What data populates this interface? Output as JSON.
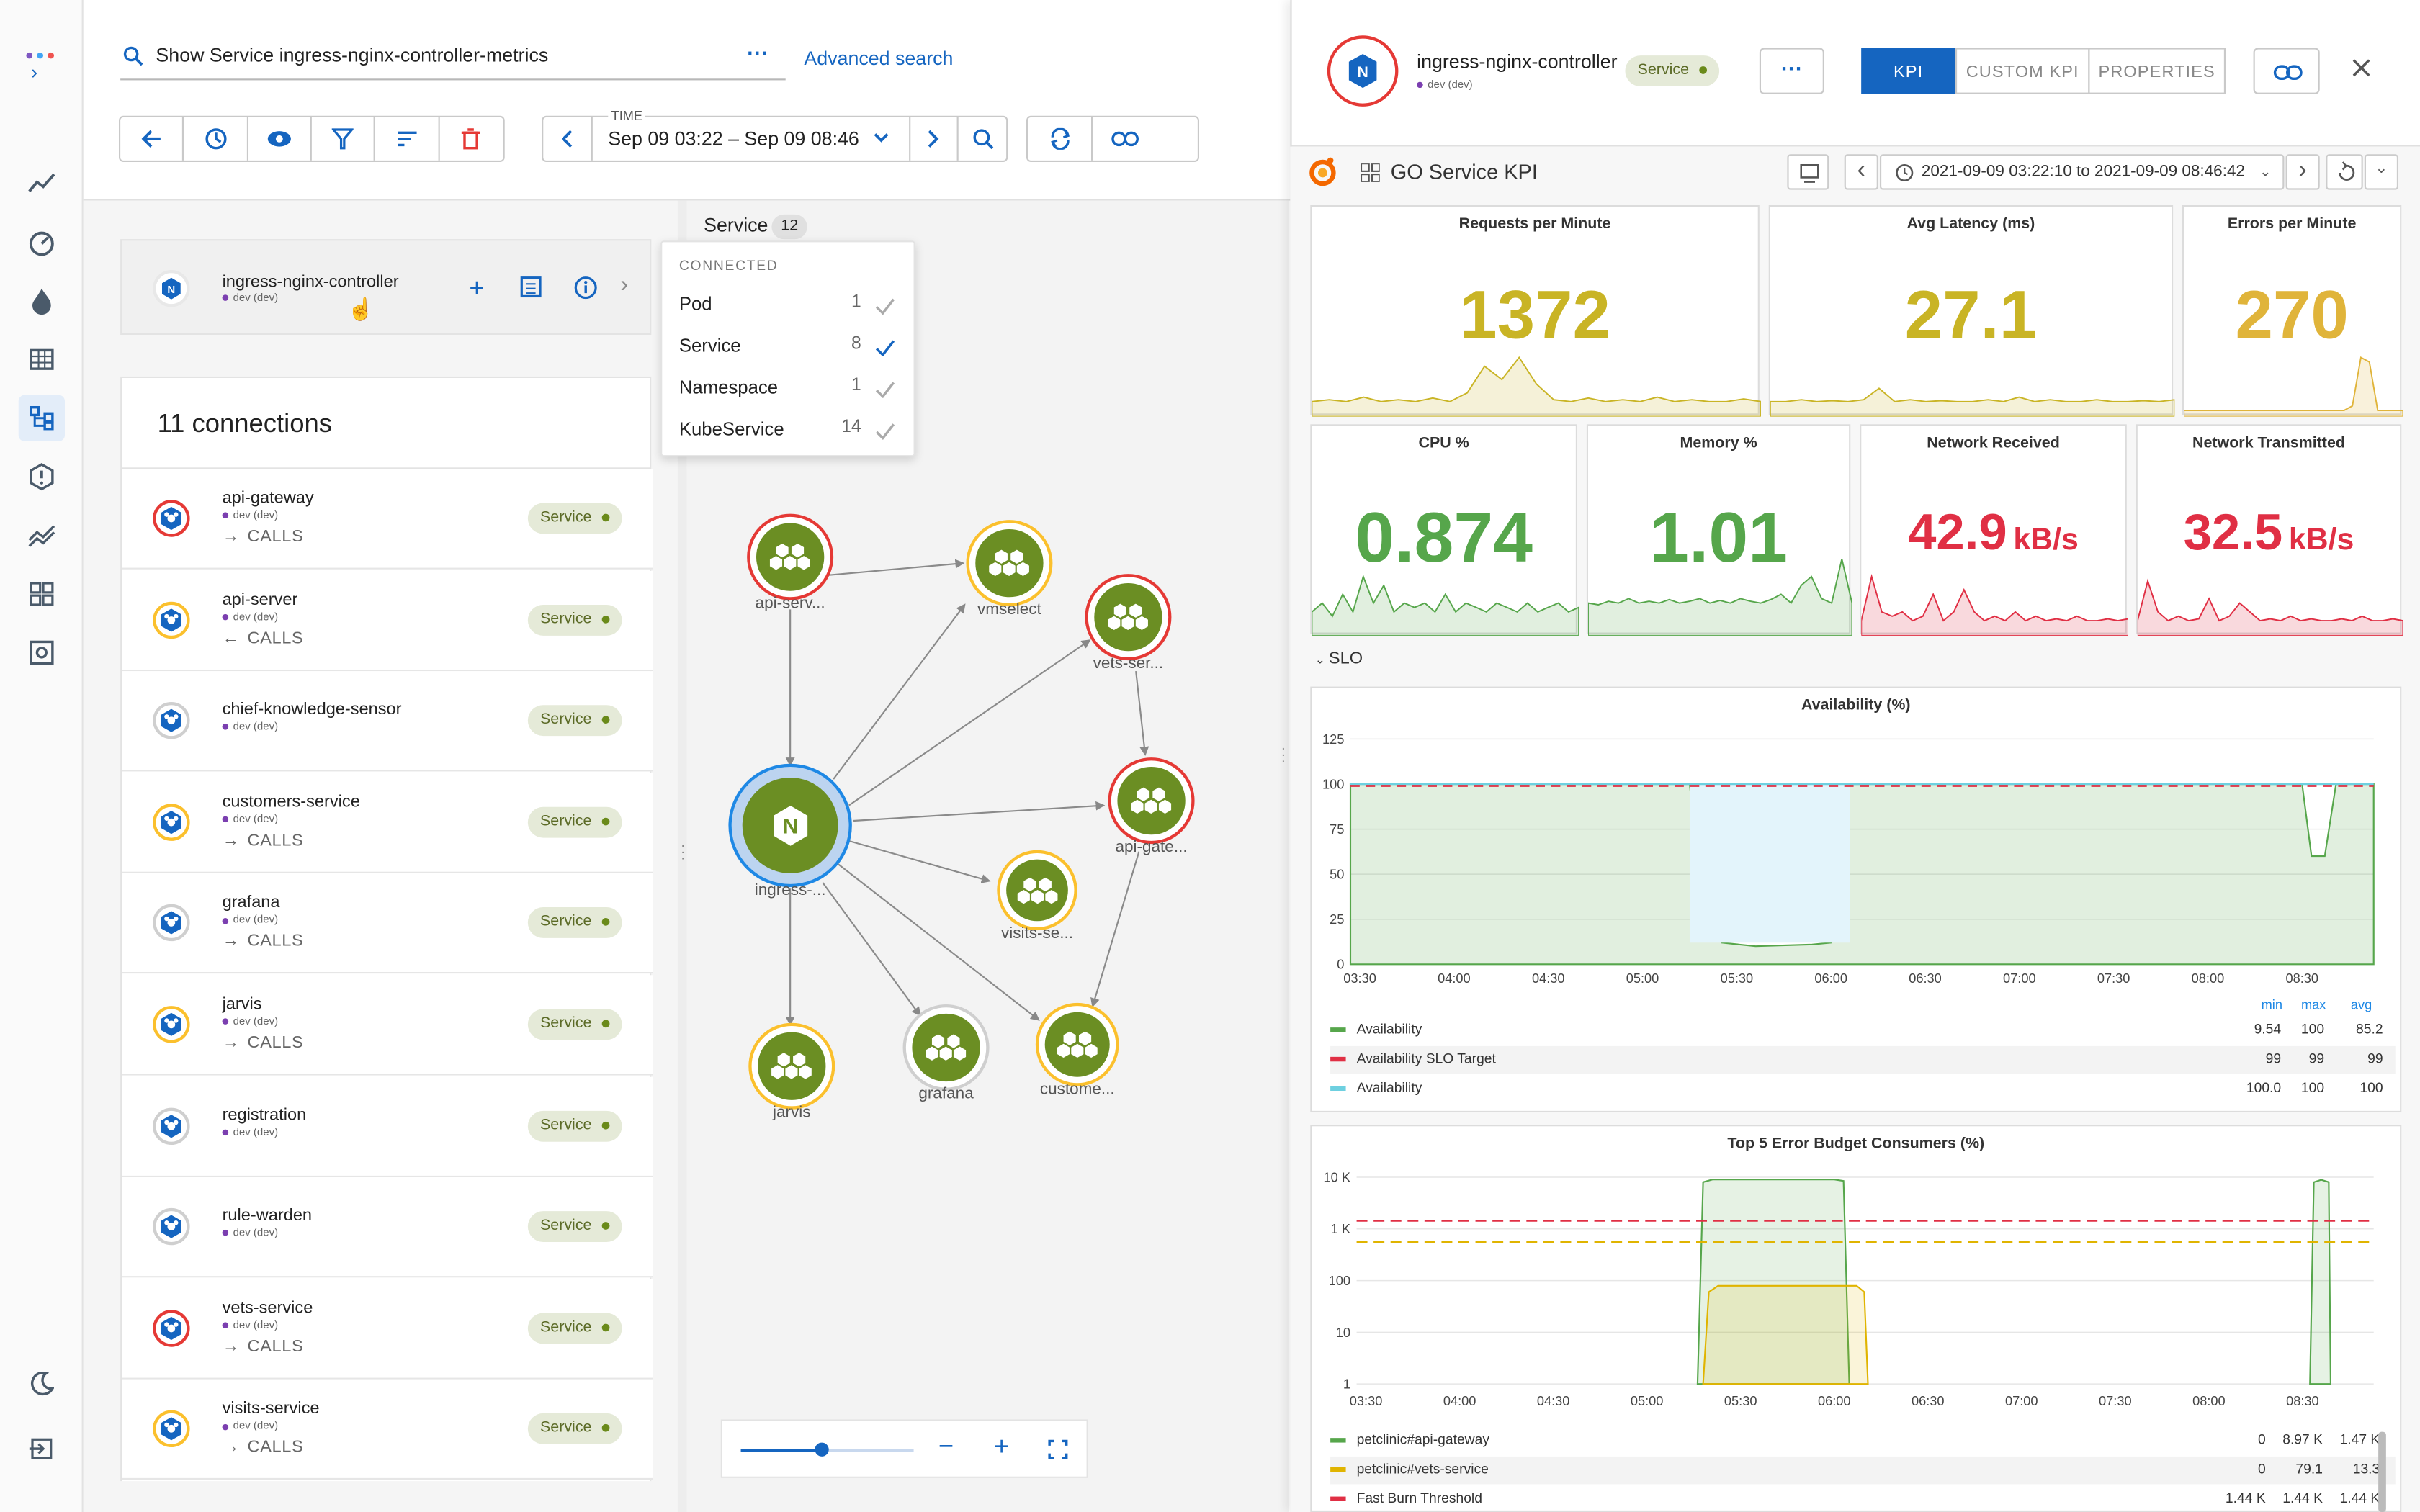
{
  "search": {
    "query": "Show Service ingress-nginx-controller-metrics",
    "advanced_label": "Advanced search"
  },
  "time": {
    "label": "TIME",
    "range": "Sep 09 03:22 – Sep 09 08:46"
  },
  "focus_entity": {
    "name": "ingress-nginx-controller",
    "env": "dev (dev)"
  },
  "connected": {
    "header": "CONNECTED",
    "items": [
      {
        "label": "Pod",
        "count": "1",
        "checked": false
      },
      {
        "label": "Service",
        "count": "8",
        "checked": true
      },
      {
        "label": "Namespace",
        "count": "1",
        "checked": false
      },
      {
        "label": "KubeService",
        "count": "14",
        "checked": false
      }
    ]
  },
  "graph_header": {
    "label": "Service",
    "count": "12"
  },
  "connections": {
    "title": "11 connections",
    "rows": [
      {
        "name": "api-gateway",
        "env": "dev (dev)",
        "relation": "CALLS",
        "dir": "out",
        "badge": "Service",
        "ring": "#e53935"
      },
      {
        "name": "api-server",
        "env": "dev (dev)",
        "relation": "CALLS",
        "dir": "in",
        "badge": "Service",
        "ring": "#fbc02d"
      },
      {
        "name": "chief-knowledge-sensor",
        "env": "dev (dev)",
        "relation": "",
        "dir": "",
        "badge": "Service",
        "ring": "#cfcfcf"
      },
      {
        "name": "customers-service",
        "env": "dev (dev)",
        "relation": "CALLS",
        "dir": "out",
        "badge": "Service",
        "ring": "#fbc02d"
      },
      {
        "name": "grafana",
        "env": "dev (dev)",
        "relation": "CALLS",
        "dir": "out",
        "badge": "Service",
        "ring": "#cfcfcf"
      },
      {
        "name": "jarvis",
        "env": "dev (dev)",
        "relation": "CALLS",
        "dir": "out",
        "badge": "Service",
        "ring": "#fbc02d"
      },
      {
        "name": "registration",
        "env": "dev (dev)",
        "relation": "",
        "dir": "",
        "badge": "Service",
        "ring": "#cfcfcf"
      },
      {
        "name": "rule-warden",
        "env": "dev (dev)",
        "relation": "",
        "dir": "",
        "badge": "Service",
        "ring": "#cfcfcf"
      },
      {
        "name": "vets-service",
        "env": "dev (dev)",
        "relation": "CALLS",
        "dir": "out",
        "badge": "Service",
        "ring": "#e53935"
      },
      {
        "name": "visits-service",
        "env": "dev (dev)",
        "relation": "CALLS",
        "dir": "out",
        "badge": "Service",
        "ring": "#fbc02d"
      }
    ]
  },
  "graph_nodes": [
    {
      "label": "api-serv...",
      "ring": "#e53935"
    },
    {
      "label": "vmselect",
      "ring": "#fbc02d"
    },
    {
      "label": "vets-ser...",
      "ring": "#e53935"
    },
    {
      "label": "api-gate...",
      "ring": "#e53935"
    },
    {
      "label": "ingress-...",
      "ring": "#1e88e5"
    },
    {
      "label": "visits-se...",
      "ring": "#fbc02d"
    },
    {
      "label": "jarvis",
      "ring": "#fbc02d"
    },
    {
      "label": "grafana",
      "ring": "#cfcfcf"
    },
    {
      "label": "custome...",
      "ring": "#fbc02d"
    }
  ],
  "detail": {
    "name": "ingress-nginx-controller",
    "env": "dev (dev)",
    "badge": "Service",
    "tabs": [
      "KPI",
      "CUSTOM KPI",
      "PROPERTIES"
    ],
    "active_tab": "KPI"
  },
  "dashboard": {
    "title": "GO Service KPI",
    "range": "2021-09-09 03:22:10 to 2021-09-09 08:46:42",
    "slo_label": "SLO",
    "stats": [
      {
        "title": "Requests per Minute",
        "value": "1372",
        "unit": "",
        "color": "#c9b425"
      },
      {
        "title": "Avg Latency (ms)",
        "value": "27.1",
        "unit": "",
        "color": "#c9b425"
      },
      {
        "title": "Errors per Minute",
        "value": "270",
        "unit": "",
        "color": "#e0b43a"
      },
      {
        "title": "CPU %",
        "value": "0.874",
        "unit": "",
        "color": "#56a64b"
      },
      {
        "title": "Memory %",
        "value": "1.01",
        "unit": "",
        "color": "#56a64b"
      },
      {
        "title": "Network Received",
        "value": "42.9",
        "unit": "kB/s",
        "color": "#e02f44"
      },
      {
        "title": "Network Transmitted",
        "value": "32.5",
        "unit": "kB/s",
        "color": "#e02f44"
      }
    ]
  },
  "chart_data": [
    {
      "type": "line",
      "title": "Availability (%)",
      "ylim": [
        0,
        125
      ],
      "yticks": [
        "125",
        "100",
        "75",
        "50",
        "25",
        "0"
      ],
      "xticks": [
        "03:30",
        "04:00",
        "04:30",
        "05:00",
        "05:30",
        "06:00",
        "06:30",
        "07:00",
        "07:30",
        "08:00",
        "08:30"
      ],
      "legend_headers": [
        "min",
        "max",
        "avg"
      ],
      "series": [
        {
          "name": "Availability",
          "color": "#56a64b",
          "min": "9.54",
          "max": "100",
          "avg": "85.2"
        },
        {
          "name": "Availability SLO Target",
          "color": "#e02f44",
          "min": "99",
          "max": "99",
          "avg": "99"
        },
        {
          "name": "Availability",
          "color": "#6ed0e0",
          "min": "100.0",
          "max": "100",
          "avg": "100"
        }
      ]
    },
    {
      "type": "area",
      "title": "Top 5 Error Budget Consumers (%)",
      "scale": "log",
      "yticks": [
        "10 K",
        "1 K",
        "100",
        "10",
        "1"
      ],
      "xticks": [
        "03:30",
        "04:00",
        "04:30",
        "05:00",
        "05:30",
        "06:00",
        "06:30",
        "07:00",
        "07:30",
        "08:00",
        "08:30"
      ],
      "series": [
        {
          "name": "petclinic#api-gateway",
          "color": "#56a64b",
          "min": "0",
          "max": "8.97 K",
          "avg": "1.47 K"
        },
        {
          "name": "petclinic#vets-service",
          "color": "#e0b400",
          "min": "0",
          "max": "79.1",
          "avg": "13.3"
        },
        {
          "name": "Fast Burn Threshold",
          "color": "#e02f44",
          "min": "1.44 K",
          "max": "1.44 K",
          "avg": "1.44 K"
        }
      ]
    }
  ],
  "colors": {
    "accent": "#1565c0",
    "service_green": "#6b8e23"
  }
}
